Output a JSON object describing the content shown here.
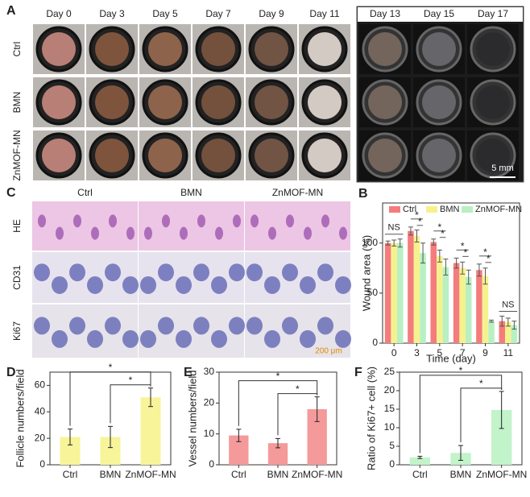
{
  "panels": {
    "A": {
      "label": "A",
      "columns": [
        "Day 0",
        "Day 3",
        "Day 5",
        "Day 7",
        "Day 9",
        "Day 11",
        "Day 13",
        "Day 15",
        "Day 17"
      ],
      "rows": [
        "Ctrl",
        "BMN",
        "ZnMOF-MN"
      ],
      "scale_bar": "5 mm"
    },
    "C": {
      "label": "C",
      "columns": [
        "Ctrl",
        "BMN",
        "ZnMOF-MN"
      ],
      "rows": [
        "HE",
        "CD31",
        "Ki67"
      ],
      "scale_bar": "200 μm"
    }
  },
  "chart_data": [
    {
      "type": "bar",
      "label": "B",
      "xlabel": "Time (day)",
      "ylabel": "Wound area (%)",
      "categories": [
        "0",
        "3",
        "5",
        "7",
        "9",
        "11"
      ],
      "series": [
        {
          "name": "Ctrl",
          "color": "#f47c7c",
          "values": [
            100,
            112,
            101,
            80,
            73,
            22
          ],
          "errors": [
            2,
            4,
            3,
            5,
            6,
            5
          ]
        },
        {
          "name": "BMN",
          "color": "#f5f28e",
          "values": [
            100,
            107,
            87,
            75,
            67,
            21
          ],
          "errors": [
            3,
            6,
            6,
            6,
            8,
            4
          ]
        },
        {
          "name": "ZnMOF-MN",
          "color": "#b8f0c2",
          "values": [
            100,
            90,
            76,
            66,
            22,
            18
          ],
          "errors": [
            4,
            10,
            8,
            7,
            1,
            4
          ]
        }
      ],
      "ylim": [
        0,
        140
      ],
      "yticks": [
        0,
        50,
        100
      ],
      "legend": true,
      "annotations": [
        "NS",
        "*",
        "*",
        "*",
        "*",
        "*",
        "*",
        "*",
        "*",
        "NS"
      ]
    },
    {
      "type": "bar",
      "label": "D",
      "ylabel": "Follicle numbers/field",
      "categories": [
        "Ctrl",
        "BMN",
        "ZnMOF-MN"
      ],
      "values": [
        21,
        21,
        51
      ],
      "errors": [
        6,
        8,
        7
      ],
      "color": "#f7f49a",
      "ylim": [
        0,
        70
      ],
      "yticks": [
        0,
        20,
        40,
        60
      ],
      "annotations": [
        "*",
        "*"
      ]
    },
    {
      "type": "bar",
      "label": "E",
      "ylabel": "Vessel numbers/field",
      "categories": [
        "Ctrl",
        "BMN",
        "ZnMOF-MN"
      ],
      "values": [
        9.5,
        7,
        18
      ],
      "errors": [
        2,
        1.5,
        4
      ],
      "color": "#f49a9a",
      "ylim": [
        0,
        30
      ],
      "yticks": [
        0,
        10,
        20,
        30
      ],
      "annotations": [
        "*",
        "*"
      ]
    },
    {
      "type": "bar",
      "label": "F",
      "ylabel": "Ratio of Ki67+ cell (%)",
      "categories": [
        "Ctrl",
        "BMN",
        "ZnMOF-MN"
      ],
      "values": [
        2,
        3.2,
        14.8
      ],
      "errors": [
        0.3,
        2,
        5
      ],
      "color": "#c2f3cb",
      "ylim": [
        0,
        25
      ],
      "yticks": [
        0,
        5,
        10,
        15,
        20,
        25
      ],
      "annotations": [
        "*",
        "*"
      ]
    }
  ]
}
